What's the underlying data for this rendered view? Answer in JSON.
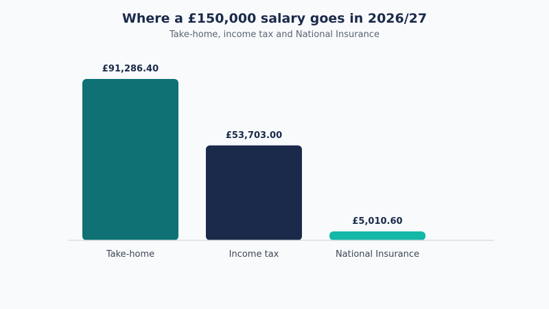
{
  "chart_data": {
    "type": "bar",
    "title": "Where a £150,000 salary goes in 2026/27",
    "subtitle": "Take-home, income tax and National Insurance",
    "categories": [
      "Take-home",
      "Income tax",
      "National Insurance"
    ],
    "values": [
      91286.4,
      53703.0,
      5010.6
    ],
    "data_labels": [
      "£91,286.40",
      "£53,703.00",
      "£5,010.60"
    ],
    "colors": [
      "#0f7173",
      "#1b2a4a",
      "#14b8a6"
    ],
    "ylim": [
      0,
      91286.4
    ],
    "grid": false,
    "legend": "none"
  },
  "colors": {
    "background": "#f8fafc",
    "baseline": "#d9dde3",
    "title": "#1b2a4a",
    "subtitle": "#5b6472",
    "category_text": "#3f4756"
  }
}
